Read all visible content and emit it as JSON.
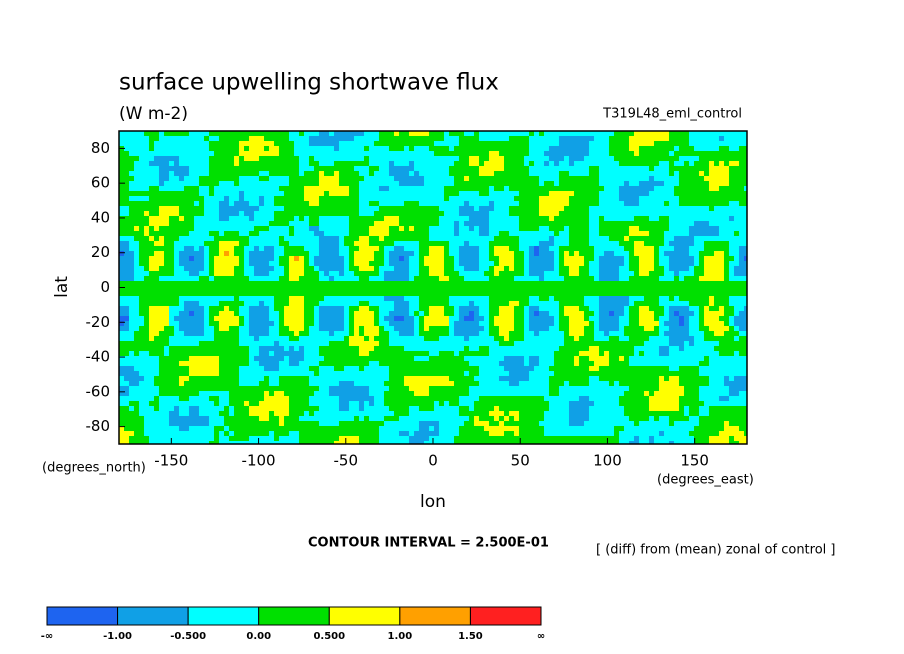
{
  "chart_data": {
    "type": "contour",
    "title": "surface upwelling shortwave flux",
    "subtitle": "(W m-2)",
    "run_label": "T319L48_eml_control",
    "x_label": "lon",
    "y_label": "lat",
    "x_units": "(degrees_east)",
    "y_units": "(degrees_north)",
    "xlim": [
      -180,
      180
    ],
    "ylim": [
      -90,
      90
    ],
    "xticks": [
      -150,
      -100,
      -50,
      0,
      50,
      100,
      150
    ],
    "yticks": [
      -80,
      -60,
      -40,
      -20,
      0,
      20,
      40,
      60,
      80
    ],
    "contour_interval_label": "CONTOUR INTERVAL = 2.500E-01",
    "note": "[ (diff) from (mean) zonal of control ]",
    "colorbar": {
      "ticks": [
        "-∞",
        {
          "value": -1,
          "label": "-1.00"
        },
        {
          "value": -0.5,
          "label": "-0.500"
        },
        {
          "value": 0,
          "label": "0.00"
        },
        {
          "value": 0.5,
          "label": "0.500"
        },
        {
          "value": 1,
          "label": "1.00"
        },
        {
          "value": 1.5,
          "label": "1.50"
        },
        "∞"
      ],
      "colors": [
        "#1e64f0",
        "#10a0e6",
        "#00ffff",
        "#00e000",
        "#ffff00",
        "#ffa000",
        "#ff2020"
      ]
    }
  }
}
